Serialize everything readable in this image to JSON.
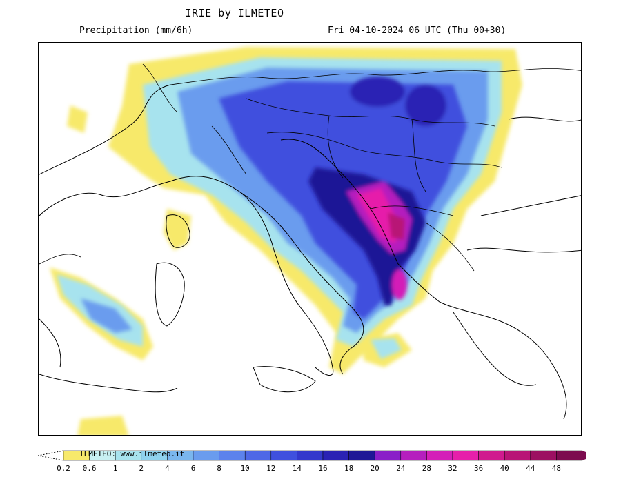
{
  "header": {
    "title": "IRIE by ILMETEO",
    "variable": "Precipitation (mm/6h)",
    "valid_time": "Fri 04-10-2024 06 UTC (Thu 00+30)"
  },
  "legend": {
    "credit": "ILMETEO: www.ilmeteo.it",
    "ticks": [
      "0.2",
      "0.6",
      "1",
      "2",
      "4",
      "6",
      "8",
      "10",
      "12",
      "14",
      "16",
      "18",
      "20",
      "24",
      "28",
      "32",
      "36",
      "40",
      "44",
      "48"
    ],
    "colors": [
      "#f7e96b",
      "#c8f0f2",
      "#a7e3ee",
      "#8fd2ee",
      "#7ab6ee",
      "#6a9cee",
      "#5c82ec",
      "#4e68e6",
      "#3f50de",
      "#3338cc",
      "#2a22b4",
      "#1f1796",
      "#8a1fc8",
      "#b51fbe",
      "#d41fb8",
      "#e61faa",
      "#d01a8e",
      "#b81476",
      "#9c1061",
      "#7d0c4f"
    ]
  },
  "map": {
    "region": "central Mediterranean and Balkans",
    "peak_color": "#e61faa"
  }
}
